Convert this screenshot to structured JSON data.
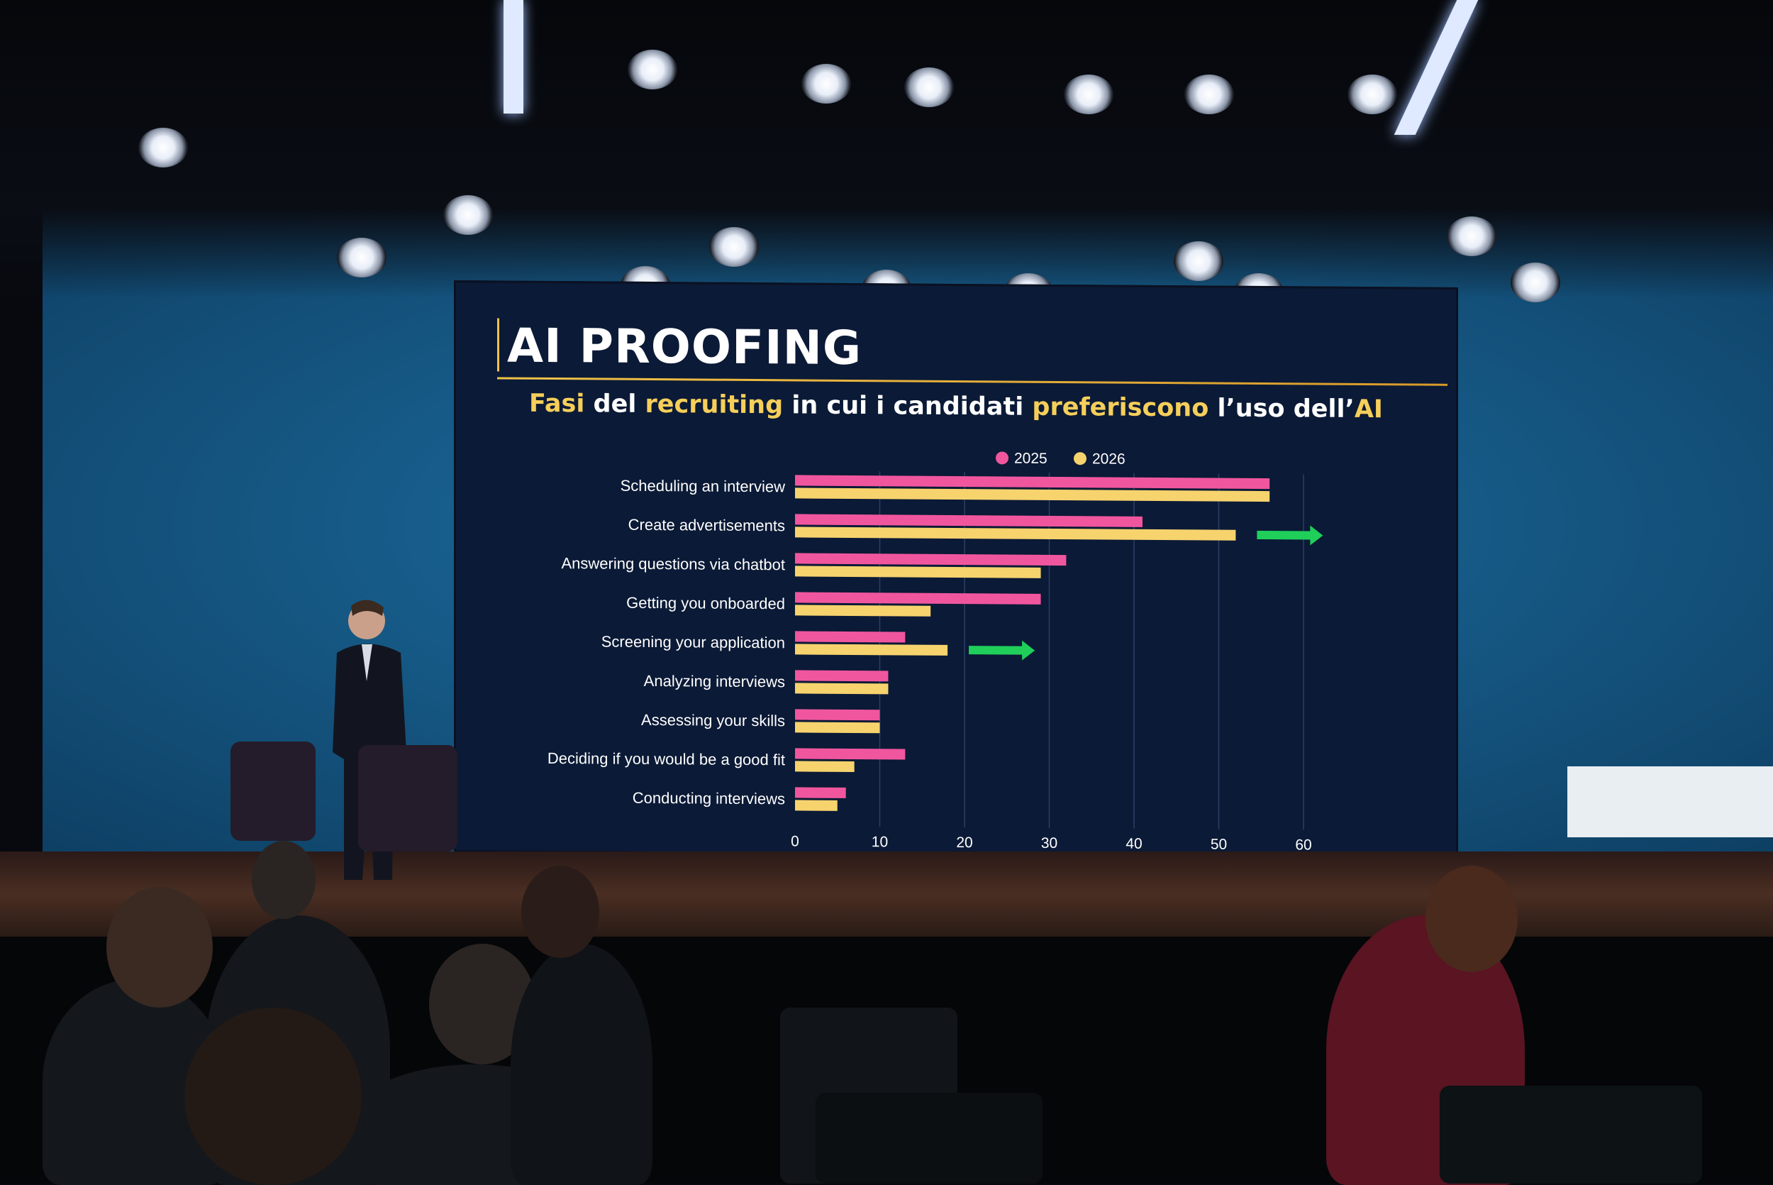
{
  "slide": {
    "title": "AI PROOFING",
    "subtitle_parts": [
      {
        "text": "Fasi",
        "hl": true
      },
      {
        "text": " del ",
        "hl": false
      },
      {
        "text": "recruiting",
        "hl": true
      },
      {
        "text": " in cui i candidati ",
        "hl": false
      },
      {
        "text": "preferiscono",
        "hl": true
      },
      {
        "text": " l’uso dell’",
        "hl": false
      },
      {
        "text": "AI",
        "hl": true
      }
    ]
  },
  "colors": {
    "series_2025": "#f0569e",
    "series_2026": "#f7d36e",
    "arrow": "#1fcf5a",
    "grid": "#2b3f66",
    "label": "#ffffff"
  },
  "chart_data": {
    "type": "bar",
    "orientation": "horizontal",
    "categories": [
      "Scheduling an interview",
      "Create advertisements",
      "Answering questions via chatbot",
      "Getting you onboarded",
      "Screening your application",
      "Analyzing interviews",
      "Assessing your skills",
      "Deciding if you would be a good fit",
      "Conducting interviews"
    ],
    "series": [
      {
        "name": "2025",
        "values": [
          56,
          41,
          32,
          29,
          13,
          11,
          10,
          13,
          6
        ]
      },
      {
        "name": "2026",
        "values": [
          56,
          52,
          29,
          16,
          18,
          11,
          10,
          7,
          5
        ]
      }
    ],
    "xlim": [
      0,
      60
    ],
    "xticks": [
      0,
      10,
      20,
      30,
      40,
      50,
      60
    ],
    "legend_position": "top",
    "grid": "vertical",
    "annotations": [
      {
        "type": "arrow",
        "category": "Create advertisements"
      },
      {
        "type": "arrow",
        "category": "Screening your application"
      }
    ]
  }
}
